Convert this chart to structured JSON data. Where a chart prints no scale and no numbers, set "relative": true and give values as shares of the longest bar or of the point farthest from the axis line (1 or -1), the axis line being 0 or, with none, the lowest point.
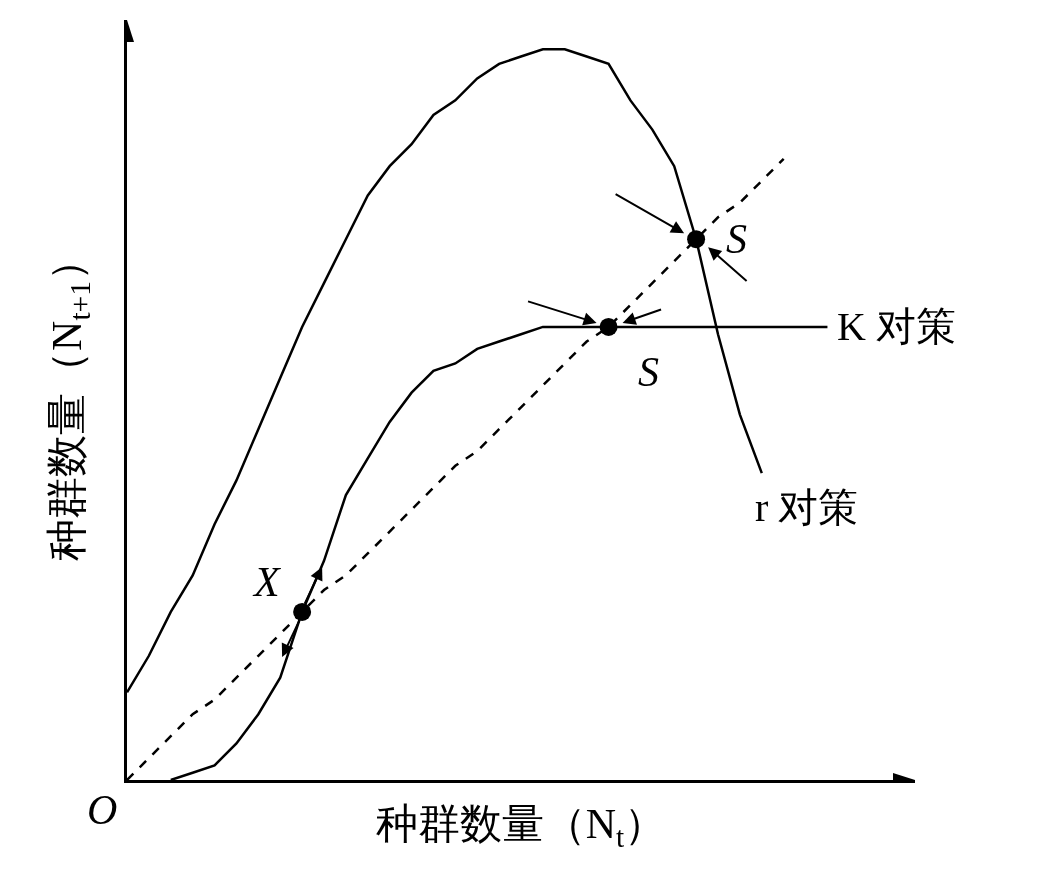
{
  "chart_data": {
    "type": "line",
    "relative": true,
    "xlabel": "种群数量（N$_{t}$）",
    "ylabel": "种群数量（N$_{t+1}$）",
    "grid": false,
    "legend": false,
    "categories": [
      null,
      null,
      null,
      null,
      null,
      null,
      null,
      null,
      null,
      null,
      null,
      null,
      null,
      null,
      null,
      null,
      null,
      null,
      null,
      null,
      null,
      null,
      null,
      null,
      null,
      null,
      null,
      null,
      null,
      null,
      null,
      null,
      null,
      null,
      null,
      null,
      null
    ],
    "series": [
      {
        "name": "r 对策",
        "color": "#000000",
        "line_style": "solid",
        "values": [
          0.12,
          0.17,
          0.23,
          0.28,
          0.35,
          0.41,
          0.48,
          0.55,
          0.62,
          0.68,
          0.74,
          0.8,
          0.84,
          0.87,
          0.91,
          0.93,
          0.96,
          0.98,
          0.99,
          1.0,
          1.0,
          0.99,
          0.98,
          0.93,
          0.89,
          0.84,
          0.74,
          0.61,
          0.5,
          0.42,
          null,
          null,
          null,
          null,
          null,
          null,
          null
        ]
      },
      {
        "name": "K 对策",
        "color": "#000000",
        "line_style": "solid",
        "values": [
          null,
          null,
          0,
          0.01,
          0.02,
          0.05,
          0.09,
          0.14,
          0.23,
          0.3,
          0.39,
          0.44,
          0.49,
          0.53,
          0.56,
          0.57,
          0.59,
          0.6,
          0.61,
          0.62,
          0.62,
          0.62,
          0.62,
          0.62,
          0.62,
          0.62,
          0.62,
          0.62,
          0.62,
          0.62,
          0.62,
          0.62,
          0.62,
          null,
          null,
          null,
          null
        ]
      },
      {
        "type": "line",
        "color": "#000000",
        "line_style": "dashed",
        "values": [
          0,
          0.03,
          0.06,
          0.09,
          0.11,
          0.14,
          0.17,
          0.2,
          0.23,
          0.26,
          0.28,
          0.31,
          0.34,
          0.37,
          0.4,
          0.43,
          0.45,
          0.48,
          0.51,
          0.54,
          0.57,
          0.6,
          0.62,
          0.65,
          0.68,
          0.71,
          0.74,
          0.77,
          0.79,
          0.82,
          0.85,
          null,
          null,
          null,
          null,
          null,
          null
        ]
      },
      {
        "type": "line",
        "color": "#000000",
        "marker": "circle",
        "values": [
          null,
          null,
          null,
          null,
          null,
          null,
          null,
          null,
          0.23,
          null,
          null,
          null,
          null,
          null,
          null,
          null,
          null,
          null,
          null,
          null,
          null,
          null,
          0.62,
          null,
          null,
          null,
          0.74,
          null,
          null,
          null,
          null,
          null,
          null,
          null,
          null,
          null,
          null
        ]
      }
    ],
    "annotations": [
      "X",
      "S",
      "S",
      "O"
    ]
  }
}
